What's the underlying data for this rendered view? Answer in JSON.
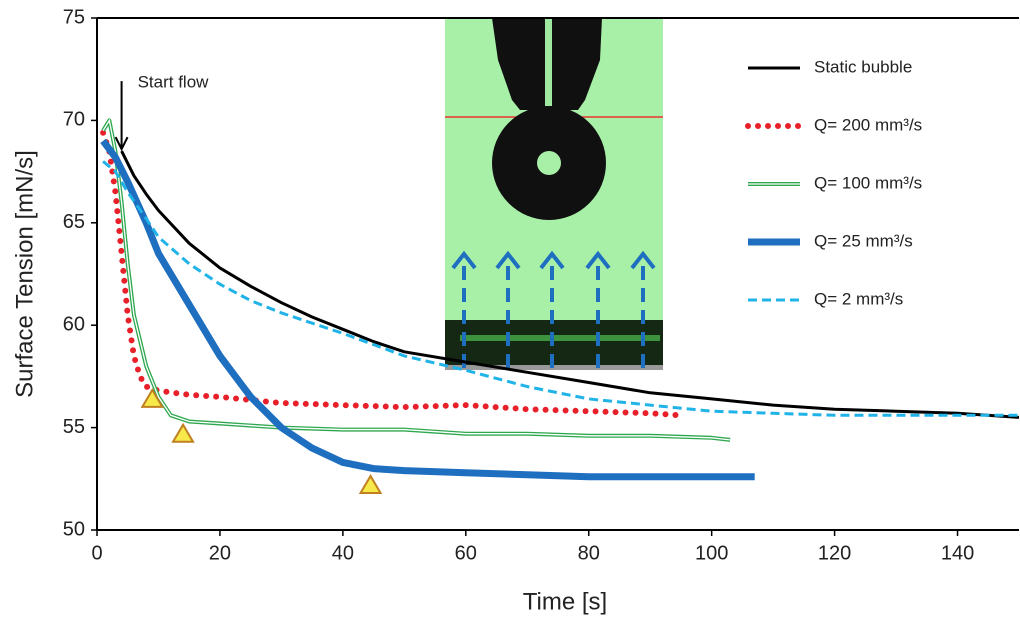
{
  "chart_data": {
    "type": "line",
    "x_label": "Time [s]",
    "y_label": "Surface Tension [mN/s]",
    "xlim": [
      0,
      150
    ],
    "xticks": [
      0,
      20,
      40,
      60,
      80,
      100,
      120,
      140
    ],
    "ylim": [
      50,
      75
    ],
    "yticks": [
      50,
      55,
      60,
      65,
      70,
      75
    ],
    "legend": "upper right",
    "series": [
      {
        "name": "Static bubble",
        "color": "#000000",
        "style": "solid",
        "width": 3,
        "x": [
          4,
          6,
          8,
          10,
          15,
          20,
          25,
          30,
          35,
          40,
          45,
          50,
          60,
          70,
          80,
          90,
          100,
          110,
          120,
          130,
          140,
          150
        ],
        "values": [
          68.5,
          67.3,
          66.4,
          65.6,
          64,
          62.8,
          61.9,
          61.1,
          60.4,
          59.8,
          59.2,
          58.7,
          58.2,
          57.7,
          57.2,
          56.7,
          56.4,
          56.1,
          55.9,
          55.8,
          55.7,
          55.5
        ]
      },
      {
        "name": "Q= 200 mm³/s",
        "color": "#e8202a",
        "style": "dotted",
        "width": 6,
        "x": [
          1,
          2,
          3,
          4,
          5,
          6,
          7,
          8,
          10,
          15,
          20,
          30,
          40,
          50,
          60,
          70,
          80,
          90,
          95
        ],
        "values": [
          69.4,
          68.5,
          66.5,
          63.5,
          60.5,
          58.5,
          57.5,
          57,
          56.8,
          56.6,
          56.5,
          56.2,
          56.1,
          56,
          56.1,
          55.9,
          55.8,
          55.7,
          55.6
        ]
      },
      {
        "name": "Q= 100 mm³/s",
        "color": "#2ea84f",
        "style": "double",
        "width": 4,
        "x": [
          1,
          2,
          3,
          4,
          5,
          6,
          8,
          10,
          12,
          15,
          20,
          30,
          40,
          50,
          60,
          70,
          80,
          90,
          100,
          103
        ],
        "values": [
          69.5,
          70,
          68.5,
          66,
          63,
          60.5,
          58,
          56.5,
          55.6,
          55.3,
          55.2,
          55,
          54.9,
          54.9,
          54.7,
          54.7,
          54.6,
          54.6,
          54.5,
          54.4
        ]
      },
      {
        "name": "Q= 25 mm³/s",
        "color": "#1f6fc0",
        "style": "solid",
        "width": 7,
        "x": [
          1,
          3,
          5,
          8,
          10,
          15,
          20,
          25,
          30,
          35,
          40,
          45,
          50,
          60,
          70,
          80,
          90,
          100,
          107
        ],
        "values": [
          69,
          68.2,
          67,
          65,
          63.5,
          61,
          58.5,
          56.5,
          55,
          54,
          53.3,
          53,
          52.9,
          52.8,
          52.7,
          52.6,
          52.6,
          52.6,
          52.6
        ]
      },
      {
        "name": "Q= 2 mm³/s",
        "color": "#1fb3e8",
        "style": "dashed",
        "width": 3,
        "x": [
          1,
          3,
          5,
          8,
          10,
          15,
          20,
          25,
          30,
          40,
          50,
          60,
          70,
          80,
          90,
          100,
          110,
          120,
          130,
          140,
          150
        ],
        "values": [
          68,
          67.5,
          66.5,
          65.2,
          64.3,
          63,
          62,
          61.2,
          60.6,
          59.6,
          58.5,
          57.8,
          57,
          56.4,
          56.1,
          55.8,
          55.7,
          55.6,
          55.6,
          55.6,
          55.6
        ]
      }
    ],
    "markers": {
      "color": "#f7e94a",
      "x": [
        9,
        14,
        44.5
      ],
      "y": [
        56.4,
        54.7,
        52.2
      ]
    },
    "annotations": [
      {
        "text": "Start flow",
        "x": 4,
        "y": 68.5
      }
    ]
  }
}
